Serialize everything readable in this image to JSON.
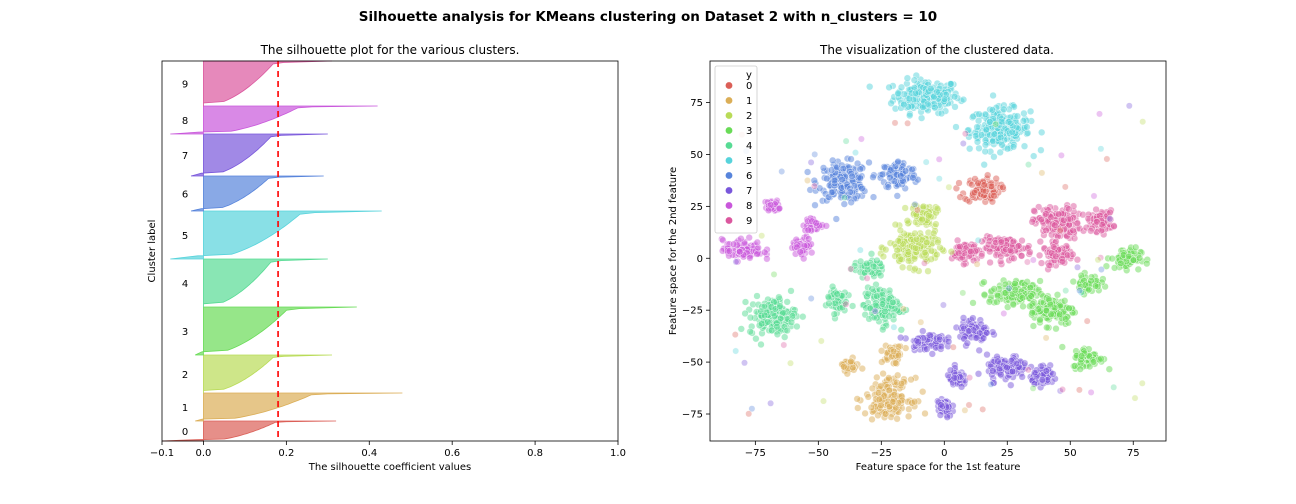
{
  "suptitle": "Silhouette analysis for KMeans clustering on Dataset 2 with n_clusters = 10",
  "left": {
    "title": "The silhouette plot for the various clusters.",
    "xlabel": "The silhouette coefficient values",
    "ylabel": "Cluster label"
  },
  "right": {
    "title": "The visualization of the clustered data.",
    "xlabel": "Feature space for the 1st feature",
    "ylabel": "Feature space for the 2nd feature",
    "legend_title": "y"
  },
  "palette": [
    "#db5f57",
    "#dbae57",
    "#b9db57",
    "#69db57",
    "#57db94",
    "#57d3db",
    "#5784db",
    "#7957db",
    "#c957db",
    "#db579e"
  ],
  "chart_data": [
    {
      "type": "area",
      "title": "The silhouette plot for the various clusters.",
      "xlabel": "The silhouette coefficient values",
      "ylabel": "Cluster label",
      "xlim": [
        -0.1,
        1.0
      ],
      "xticks": [
        "−0.1",
        "0.0",
        "0.2",
        "0.4",
        "0.6",
        "0.8",
        "1.0"
      ],
      "average_silhouette": 0.18,
      "clusters": [
        {
          "label": "0",
          "max": 0.32,
          "min": -0.1
        },
        {
          "label": "1",
          "max": 0.48,
          "min": -0.02
        },
        {
          "label": "2",
          "max": 0.31,
          "min": 0.0
        },
        {
          "label": "3",
          "max": 0.37,
          "min": -0.02
        },
        {
          "label": "4",
          "max": 0.3,
          "min": 0.0
        },
        {
          "label": "5",
          "max": 0.43,
          "min": -0.08
        },
        {
          "label": "6",
          "max": 0.29,
          "min": -0.03
        },
        {
          "label": "7",
          "max": 0.3,
          "min": -0.03
        },
        {
          "label": "8",
          "max": 0.42,
          "min": -0.08
        },
        {
          "label": "9",
          "max": 0.31,
          "min": 0.0
        }
      ]
    },
    {
      "type": "scatter",
      "title": "The visualization of the clustered data.",
      "xlabel": "Feature space for the 1st feature",
      "ylabel": "Feature space for the 2nd feature",
      "xlim": [
        -93,
        88
      ],
      "ylim": [
        -88,
        95
      ],
      "xticks": [
        "−75",
        "−50",
        "−25",
        "0",
        "25",
        "50",
        "75"
      ],
      "yticks": [
        "−75",
        "−50",
        "−25",
        "0",
        "25",
        "50",
        "75"
      ],
      "legend": {
        "title": "y",
        "entries": [
          "0",
          "1",
          "2",
          "3",
          "4",
          "5",
          "6",
          "7",
          "8",
          "9"
        ],
        "position": "upper-left"
      },
      "blobs": [
        {
          "cluster": 5,
          "x": -7,
          "y": 78,
          "rx": 13,
          "ry": 8
        },
        {
          "cluster": 5,
          "x": 22,
          "y": 62,
          "rx": 12,
          "ry": 10
        },
        {
          "cluster": 6,
          "x": -40,
          "y": 37,
          "rx": 10,
          "ry": 9
        },
        {
          "cluster": 6,
          "x": -18,
          "y": 40,
          "rx": 7,
          "ry": 7
        },
        {
          "cluster": 0,
          "x": 15,
          "y": 33,
          "rx": 7,
          "ry": 6
        },
        {
          "cluster": 9,
          "x": 45,
          "y": 17,
          "rx": 9,
          "ry": 8
        },
        {
          "cluster": 9,
          "x": 62,
          "y": 18,
          "rx": 5,
          "ry": 5
        },
        {
          "cluster": 9,
          "x": 25,
          "y": 5,
          "rx": 10,
          "ry": 5
        },
        {
          "cluster": 9,
          "x": 45,
          "y": 2,
          "rx": 6,
          "ry": 5
        },
        {
          "cluster": 9,
          "x": 8,
          "y": 3,
          "rx": 5,
          "ry": 5
        },
        {
          "cluster": 2,
          "x": -12,
          "y": 5,
          "rx": 10,
          "ry": 9
        },
        {
          "cluster": 2,
          "x": -8,
          "y": 21,
          "rx": 5,
          "ry": 5
        },
        {
          "cluster": 3,
          "x": 72,
          "y": 0,
          "rx": 6,
          "ry": 5
        },
        {
          "cluster": 3,
          "x": 28,
          "y": -17,
          "rx": 10,
          "ry": 6
        },
        {
          "cluster": 3,
          "x": 43,
          "y": -25,
          "rx": 9,
          "ry": 7
        },
        {
          "cluster": 3,
          "x": 57,
          "y": -48,
          "rx": 6,
          "ry": 5
        },
        {
          "cluster": 3,
          "x": 57,
          "y": -12,
          "rx": 5,
          "ry": 4
        },
        {
          "cluster": 4,
          "x": -68,
          "y": -28,
          "rx": 9,
          "ry": 9
        },
        {
          "cluster": 4,
          "x": -25,
          "y": -23,
          "rx": 7,
          "ry": 9
        },
        {
          "cluster": 4,
          "x": -43,
          "y": -20,
          "rx": 4,
          "ry": 6
        },
        {
          "cluster": 4,
          "x": -30,
          "y": -5,
          "rx": 6,
          "ry": 4
        },
        {
          "cluster": 8,
          "x": -80,
          "y": 4,
          "rx": 8,
          "ry": 5
        },
        {
          "cluster": 8,
          "x": -56,
          "y": 6,
          "rx": 4,
          "ry": 4
        },
        {
          "cluster": 8,
          "x": -52,
          "y": 16,
          "rx": 4,
          "ry": 3
        },
        {
          "cluster": 8,
          "x": -68,
          "y": 25,
          "rx": 3,
          "ry": 3
        },
        {
          "cluster": 7,
          "x": -7,
          "y": -40,
          "rx": 7,
          "ry": 4
        },
        {
          "cluster": 7,
          "x": 12,
          "y": -35,
          "rx": 6,
          "ry": 6
        },
        {
          "cluster": 7,
          "x": 25,
          "y": -53,
          "rx": 8,
          "ry": 6
        },
        {
          "cluster": 7,
          "x": 40,
          "y": -57,
          "rx": 5,
          "ry": 4
        },
        {
          "cluster": 7,
          "x": 5,
          "y": -58,
          "rx": 4,
          "ry": 4
        },
        {
          "cluster": 7,
          "x": 0,
          "y": -72,
          "rx": 3,
          "ry": 5
        },
        {
          "cluster": 1,
          "x": -22,
          "y": -67,
          "rx": 9,
          "ry": 9
        },
        {
          "cluster": 1,
          "x": -20,
          "y": -46,
          "rx": 4,
          "ry": 4
        },
        {
          "cluster": 1,
          "x": -38,
          "y": -52,
          "rx": 4,
          "ry": 3
        }
      ]
    }
  ]
}
